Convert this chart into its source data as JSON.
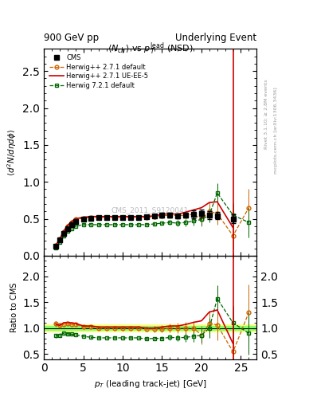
{
  "title_left": "900 GeV pp",
  "title_right": "Underlying Event",
  "plot_title": "$\\langle N_{ch}\\rangle$ vs $p_T^{\\rm lead}$ (NSD)",
  "ylabel_main": "$\\langle d^2 N/d\\eta d\\phi\\rangle$",
  "ylabel_ratio": "Ratio to CMS",
  "xlabel": "$p_T$ (leading track-jet) [GeV]",
  "watermark": "CMS_2011_S9120041",
  "right_label": "Rivet 3.1.10; ≥ 2.8M events",
  "right_label2": "mcplots.cern.ch [arXiv:1306.3436]",
  "xlim": [
    0,
    27
  ],
  "ylim_main": [
    0,
    2.8
  ],
  "ylim_ratio": [
    0.4,
    2.4
  ],
  "cms_x": [
    1.5,
    2.0,
    2.5,
    3.0,
    3.5,
    4.0,
    5.0,
    6.0,
    7.0,
    8.0,
    9.0,
    10.0,
    11.0,
    12.0,
    13.0,
    14.0,
    15.0,
    16.0,
    17.0,
    18.0,
    19.0,
    20.0,
    21.0,
    22.0,
    24.0
  ],
  "cms_y": [
    0.13,
    0.21,
    0.3,
    0.37,
    0.42,
    0.46,
    0.5,
    0.51,
    0.52,
    0.52,
    0.52,
    0.52,
    0.52,
    0.52,
    0.53,
    0.54,
    0.55,
    0.55,
    0.54,
    0.55,
    0.56,
    0.57,
    0.55,
    0.54,
    0.5
  ],
  "cms_yerr": [
    0.01,
    0.01,
    0.01,
    0.01,
    0.01,
    0.02,
    0.02,
    0.02,
    0.02,
    0.02,
    0.02,
    0.02,
    0.02,
    0.02,
    0.02,
    0.02,
    0.03,
    0.03,
    0.03,
    0.03,
    0.05,
    0.05,
    0.05,
    0.05,
    0.06
  ],
  "hw271_x": [
    1.5,
    2.0,
    2.5,
    3.0,
    3.5,
    4.0,
    5.0,
    6.0,
    7.0,
    8.0,
    9.0,
    10.0,
    11.0,
    12.0,
    13.0,
    14.0,
    15.0,
    16.0,
    17.0,
    18.0,
    19.0,
    20.0,
    21.0,
    22.0,
    24.0,
    26.0
  ],
  "hw271_y": [
    0.14,
    0.22,
    0.32,
    0.4,
    0.45,
    0.49,
    0.51,
    0.52,
    0.52,
    0.52,
    0.52,
    0.52,
    0.52,
    0.52,
    0.52,
    0.53,
    0.54,
    0.55,
    0.54,
    0.55,
    0.56,
    0.49,
    0.6,
    0.57,
    0.27,
    0.65
  ],
  "hw271_yerr": [
    0.01,
    0.01,
    0.01,
    0.01,
    0.01,
    0.01,
    0.01,
    0.01,
    0.01,
    0.01,
    0.01,
    0.01,
    0.02,
    0.02,
    0.02,
    0.03,
    0.03,
    0.04,
    0.05,
    0.06,
    0.07,
    0.09,
    0.12,
    0.15,
    0.18,
    0.25
  ],
  "hw271ue_x": [
    1.5,
    2.0,
    2.5,
    3.0,
    3.5,
    4.0,
    5.0,
    6.0,
    7.0,
    8.0,
    9.0,
    10.0,
    11.0,
    12.0,
    13.0,
    14.0,
    15.0,
    16.0,
    17.0,
    18.0,
    19.0,
    20.0,
    21.0,
    22.0,
    24.0
  ],
  "hw271ue_y": [
    0.14,
    0.22,
    0.33,
    0.41,
    0.46,
    0.5,
    0.52,
    0.53,
    0.53,
    0.53,
    0.53,
    0.53,
    0.53,
    0.53,
    0.53,
    0.54,
    0.56,
    0.57,
    0.56,
    0.59,
    0.62,
    0.65,
    0.72,
    0.73,
    0.38
  ],
  "hw721_x": [
    1.5,
    2.0,
    2.5,
    3.0,
    3.5,
    4.0,
    5.0,
    6.0,
    7.0,
    8.0,
    9.0,
    10.0,
    11.0,
    12.0,
    13.0,
    14.0,
    15.0,
    16.0,
    17.0,
    18.0,
    19.0,
    20.0,
    21.0,
    22.0,
    24.0,
    26.0
  ],
  "hw721_y": [
    0.11,
    0.18,
    0.27,
    0.33,
    0.37,
    0.4,
    0.42,
    0.42,
    0.42,
    0.42,
    0.42,
    0.42,
    0.42,
    0.42,
    0.42,
    0.43,
    0.44,
    0.45,
    0.44,
    0.45,
    0.47,
    0.49,
    0.55,
    0.85,
    0.55,
    0.45
  ],
  "hw721_yerr": [
    0.01,
    0.01,
    0.01,
    0.01,
    0.01,
    0.01,
    0.01,
    0.01,
    0.01,
    0.01,
    0.01,
    0.01,
    0.01,
    0.01,
    0.01,
    0.02,
    0.02,
    0.03,
    0.04,
    0.05,
    0.06,
    0.08,
    0.1,
    0.13,
    0.16,
    0.2
  ],
  "hw271_ratio_x": [
    1.5,
    2.0,
    2.5,
    3.0,
    3.5,
    4.0,
    5.0,
    6.0,
    7.0,
    8.0,
    9.0,
    10.0,
    11.0,
    12.0,
    13.0,
    14.0,
    15.0,
    16.0,
    17.0,
    18.0,
    19.0,
    20.0,
    21.0,
    22.0,
    24.0,
    26.0
  ],
  "hw271_ratio_y": [
    1.08,
    1.05,
    1.07,
    1.08,
    1.07,
    1.07,
    1.02,
    1.02,
    1.0,
    1.0,
    1.0,
    1.0,
    1.0,
    1.0,
    0.98,
    0.98,
    0.98,
    1.0,
    1.0,
    1.0,
    1.0,
    0.86,
    1.09,
    1.06,
    0.54,
    1.3
  ],
  "hw271_ratio_yerr": [
    0.05,
    0.05,
    0.04,
    0.03,
    0.03,
    0.03,
    0.03,
    0.03,
    0.03,
    0.03,
    0.03,
    0.03,
    0.04,
    0.04,
    0.05,
    0.06,
    0.07,
    0.09,
    0.1,
    0.12,
    0.14,
    0.18,
    0.24,
    0.3,
    0.38,
    0.55
  ],
  "hw271ue_ratio_x": [
    1.5,
    2.0,
    2.5,
    3.0,
    3.5,
    4.0,
    5.0,
    6.0,
    7.0,
    8.0,
    9.0,
    10.0,
    11.0,
    12.0,
    13.0,
    14.0,
    15.0,
    16.0,
    17.0,
    18.0,
    19.0,
    20.0,
    21.0,
    22.0,
    24.0
  ],
  "hw271ue_ratio_y": [
    1.08,
    1.05,
    1.1,
    1.11,
    1.1,
    1.09,
    1.04,
    1.04,
    1.02,
    1.02,
    1.02,
    1.02,
    1.02,
    1.02,
    1.0,
    1.0,
    1.02,
    1.04,
    1.04,
    1.07,
    1.11,
    1.14,
    1.31,
    1.35,
    0.7
  ],
  "hw721_ratio_x": [
    1.5,
    2.0,
    2.5,
    3.0,
    3.5,
    4.0,
    5.0,
    6.0,
    7.0,
    8.0,
    9.0,
    10.0,
    11.0,
    12.0,
    13.0,
    14.0,
    15.0,
    16.0,
    17.0,
    18.0,
    19.0,
    20.0,
    21.0,
    22.0,
    24.0,
    26.0
  ],
  "hw721_ratio_y": [
    0.85,
    0.86,
    0.9,
    0.89,
    0.88,
    0.87,
    0.84,
    0.82,
    0.81,
    0.81,
    0.81,
    0.81,
    0.81,
    0.81,
    0.79,
    0.8,
    0.8,
    0.82,
    0.81,
    0.82,
    0.84,
    0.86,
    1.0,
    1.57,
    1.1,
    0.9
  ],
  "hw721_ratio_yerr": [
    0.04,
    0.04,
    0.03,
    0.03,
    0.02,
    0.02,
    0.02,
    0.02,
    0.02,
    0.02,
    0.02,
    0.02,
    0.02,
    0.02,
    0.03,
    0.03,
    0.04,
    0.05,
    0.06,
    0.08,
    0.1,
    0.14,
    0.19,
    0.25,
    0.32,
    0.42
  ],
  "cms_color": "#000000",
  "hw271_color": "#cc6600",
  "hw271ue_color": "#cc0000",
  "hw721_color": "#006600",
  "band_yellow": "#ffff66",
  "band_green": "#66ff66"
}
